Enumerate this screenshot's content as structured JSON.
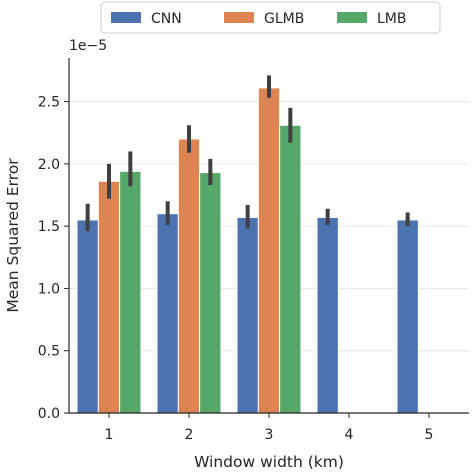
{
  "chart_data": {
    "type": "bar",
    "xlabel": "Window width (km)",
    "ylabel": "Mean Squared Error",
    "scale_text": "1e−5",
    "ylim": [
      0,
      2.85
    ],
    "yticks": [
      0.0,
      0.5,
      1.0,
      1.5,
      2.0,
      2.5
    ],
    "ytick_labels": [
      "0.0",
      "0.5",
      "1.0",
      "1.5",
      "2.0",
      "2.5"
    ],
    "categories": [
      "1",
      "2",
      "3",
      "4",
      "5"
    ],
    "grid": true,
    "legend_position": "top-center",
    "series": [
      {
        "name": "CNN",
        "color": "#4c72b0",
        "values": [
          1.55,
          1.6,
          1.57,
          1.57,
          1.55
        ],
        "ci": [
          [
            1.46,
            1.68
          ],
          [
            1.51,
            1.7
          ],
          [
            1.48,
            1.67
          ],
          [
            1.51,
            1.64
          ],
          [
            1.5,
            1.61
          ]
        ]
      },
      {
        "name": "GLMB",
        "color": "#dd8452",
        "values": [
          1.86,
          2.2,
          2.61,
          null,
          null
        ],
        "ci": [
          [
            1.72,
            2.0
          ],
          [
            2.09,
            2.31
          ],
          [
            2.53,
            2.71
          ],
          null,
          null
        ]
      },
      {
        "name": "LMB",
        "color": "#55a868",
        "values": [
          1.94,
          1.93,
          2.31,
          null,
          null
        ],
        "ci": [
          [
            1.82,
            2.1
          ],
          [
            1.83,
            2.04
          ],
          [
            2.17,
            2.45
          ],
          null,
          null
        ]
      }
    ]
  }
}
